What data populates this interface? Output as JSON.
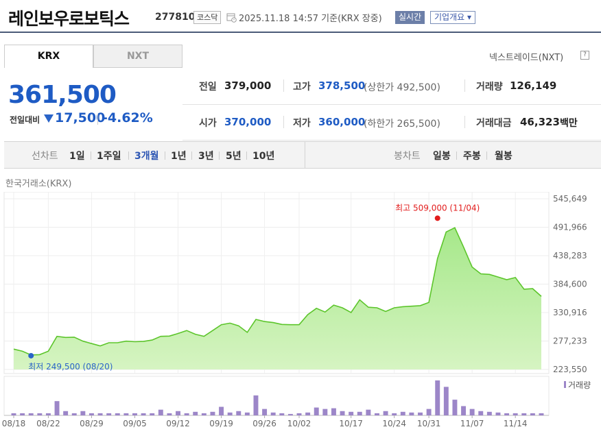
{
  "header": {
    "name": "레인보우로보틱스",
    "code": "277810",
    "market": "코스닥",
    "timestamp": "2025.11.18 14:57  기준(KRX 장중)",
    "live_label": "실시간",
    "company_label": "기업개요 ▾"
  },
  "tabs": [
    {
      "label": "KRX",
      "active": true
    },
    {
      "label": "NXT",
      "active": false
    }
  ],
  "trade_link": "넥스트레이드(NXT)",
  "help_glyph": "?",
  "price": {
    "current": "361,500",
    "change_label": "전일대비",
    "change_value": "17,500",
    "change_pct": "-4.62%",
    "direction": "down"
  },
  "info": {
    "row1": [
      {
        "label": "전일",
        "value": "379,000",
        "sub": ""
      },
      {
        "label": "고가",
        "value": "378,500",
        "sub": "(상한가 492,500)"
      },
      {
        "label": "거래량",
        "value": "126,149",
        "sub": ""
      }
    ],
    "row2": [
      {
        "label": "시가",
        "value": "370,000",
        "sub": ""
      },
      {
        "label": "저가",
        "value": "360,000",
        "sub": "(하한가 265,500)"
      },
      {
        "label": "거래대금",
        "value": "46,323",
        "sub": "백만"
      }
    ]
  },
  "periods": {
    "line_label": "선차트",
    "line_items": [
      "1일",
      "1주일",
      "3개월",
      "1년",
      "3년",
      "5년",
      "10년"
    ],
    "active": "3개월",
    "candle_label": "봉차트",
    "candle_items": [
      "일봉",
      "주봉",
      "월봉"
    ]
  },
  "exchange_label": "한국거래소(KRX)",
  "colors": {
    "accent_blue": "#1e5bc4",
    "line_green": "#5cc52b",
    "fill_green": "#d6f4c2",
    "volume_bar": "#9c86c8",
    "max_red": "#e21c1c",
    "min_blue": "#2a64c8"
  },
  "chart_data": {
    "type": "area",
    "ylim": [
      223550,
      545649
    ],
    "y_ticks": [
      "545,649",
      "491,966",
      "438,283",
      "384,600",
      "330,916",
      "277,233",
      "223,550"
    ],
    "x_tick_labels": [
      "08/18",
      "08/22",
      "08/29",
      "09/05",
      "09/12",
      "09/19",
      "09/26",
      "10/02",
      "10/17",
      "10/24",
      "10/31",
      "11/07",
      "11/14"
    ],
    "x_tick_indices": [
      0,
      4,
      9,
      14,
      19,
      24,
      29,
      33,
      39,
      44,
      48,
      53,
      58
    ],
    "series": [
      {
        "values": [
          262000,
          258000,
          251000,
          251500,
          258000,
          286000,
          284000,
          284500,
          277000,
          272500,
          268000,
          274000,
          274000,
          277000,
          276000,
          276500,
          279000,
          286000,
          286500,
          291500,
          297000,
          290000,
          286000,
          297000,
          308000,
          311000,
          306000,
          293500,
          318000,
          314000,
          312000,
          308500,
          308000,
          308000,
          327000,
          339000,
          332000,
          345000,
          340000,
          331000,
          355000,
          341000,
          340000,
          333000,
          340000,
          342000,
          343000,
          344000,
          350000,
          433000,
          483000,
          491000,
          455000,
          417000,
          404000,
          403000,
          398000,
          393000,
          397000,
          375000,
          376000,
          361500
        ]
      }
    ],
    "volume_label": "거래량",
    "volume": [
      3,
      3,
      3,
      3,
      3,
      20,
      6,
      3,
      6,
      3,
      3,
      3,
      3,
      3,
      3,
      3,
      3,
      8,
      3,
      6,
      3,
      5,
      3,
      5,
      12,
      4,
      6,
      4,
      28,
      9,
      4,
      3,
      2,
      3,
      4,
      11,
      9,
      10,
      6,
      5,
      5,
      8,
      3,
      6,
      3,
      5,
      4,
      4,
      9,
      49,
      40,
      22,
      13,
      9,
      6,
      5,
      4,
      3,
      3,
      3,
      3,
      3
    ],
    "max_annotation": "최고 509,000 (11/04)",
    "max_value": 509000,
    "max_index": 49,
    "min_annotation": "최저 249,500 (08/20)",
    "min_value": 249500,
    "min_index": 2
  }
}
